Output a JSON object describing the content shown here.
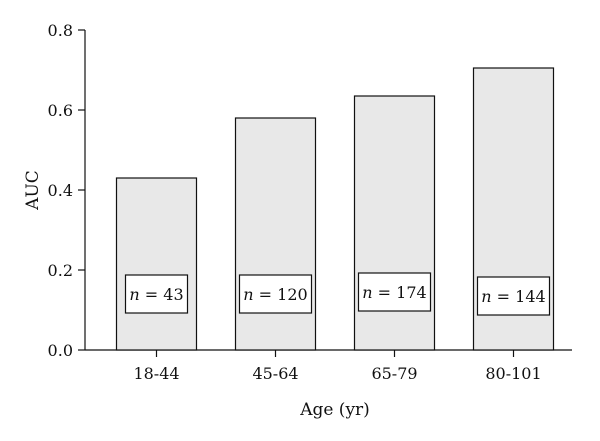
{
  "chart_data": {
    "type": "bar",
    "categories": [
      "18-44",
      "45-64",
      "65-79",
      "80-101"
    ],
    "values": [
      0.43,
      0.58,
      0.635,
      0.705
    ],
    "sample_labels": [
      {
        "prefix": "n",
        "text": " = 43"
      },
      {
        "prefix": "n",
        "text": " = 120"
      },
      {
        "prefix": "n",
        "text": " = 174"
      },
      {
        "prefix": "n",
        "text": " = 144"
      }
    ],
    "xlabel": "Age (yr)",
    "ylabel": "AUC",
    "ylim": [
      0,
      0.8
    ],
    "yticks": [
      "0.0",
      "0.2",
      "0.4",
      "0.6",
      "0.8"
    ],
    "grid": false,
    "colors": {
      "bar_fill": "#e8e8e8",
      "bar_stroke": "#111111",
      "axis": "#111111"
    }
  }
}
